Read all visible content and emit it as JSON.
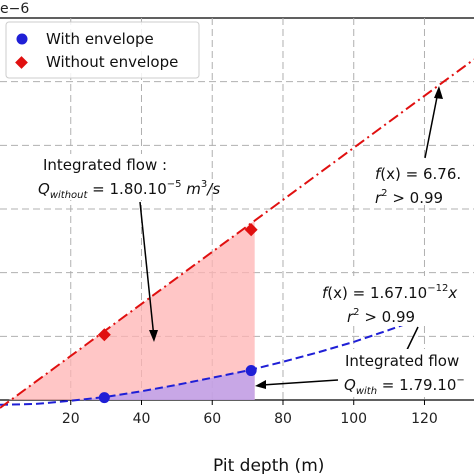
{
  "chart_data": {
    "type": "line",
    "xlabel": "Pit depth (m)",
    "x_ticks": [
      "20",
      "40",
      "60",
      "80",
      "100",
      "120"
    ],
    "xlim": [
      0,
      134
    ],
    "ylim": [
      0,
      2.4
    ],
    "y_offset_label": "e−6",
    "grid": true,
    "legend_position": "top-left",
    "series": [
      {
        "name": "With envelope",
        "color": "#1f1fd6",
        "marker": "circle",
        "points": [
          [
            29.5,
            0.015
          ],
          [
            71,
            0.185
          ]
        ],
        "fit_curve": [
          [
            0,
            -0.03
          ],
          [
            10,
            -0.025
          ],
          [
            20,
            -0.005
          ],
          [
            30,
            0.02
          ],
          [
            40,
            0.055
          ],
          [
            50,
            0.095
          ],
          [
            60,
            0.14
          ],
          [
            70,
            0.185
          ],
          [
            80,
            0.24
          ],
          [
            90,
            0.3
          ],
          [
            100,
            0.365
          ],
          [
            110,
            0.44
          ],
          [
            120,
            0.52
          ],
          [
            134,
            0.64
          ]
        ]
      },
      {
        "name": "Without envelope",
        "color": "#e01010",
        "marker": "diamond",
        "points": [
          [
            29.5,
            0.41
          ],
          [
            71,
            1.07
          ]
        ],
        "fit_curve": [
          [
            0,
            -0.05
          ],
          [
            134,
            2.14
          ]
        ]
      }
    ],
    "shaded_regions": [
      {
        "series": "Without envelope",
        "color": "#ffb3b3",
        "x_range": [
          0,
          72
        ]
      },
      {
        "series": "With envelope",
        "color": "#b59cf0",
        "x_range": [
          0,
          72
        ]
      }
    ],
    "annotations": {
      "flow_without_title": "Integrated flow :",
      "flow_without_value": "Q_without = 1.80.10^−5 m³/s",
      "fit_without_1": "f(x) = 6.76.",
      "fit_without_2": "r² > 0.99",
      "fit_with_1": "f(x) = 1.67.10^−12 x",
      "fit_with_2": "r² > 0.99",
      "flow_with_title": "Integrated flow",
      "flow_with_value": "Q_with = 1.79.10⁻"
    }
  },
  "text": {
    "offset": "e−6",
    "xlabel": "Pit depth (m)",
    "legend_with": "With envelope",
    "legend_without": "Without envelope",
    "flow_without_title": "Integrated flow :",
    "q_without_q": "Q",
    "q_without_sub": "without",
    "q_without_eq": " = 1.80.10",
    "q_without_exp": "−5",
    "q_without_unit": " m",
    "q_without_unit_exp": "3",
    "q_without_unit_tail": "/s",
    "fw_f": "f",
    "fw_rest": "(x) = 6.76.",
    "fw_r": "r",
    "fw_r_exp": "2",
    "fw_r_rest": " > 0.99",
    "fi_f": "f",
    "fi_rest": "(x) = 1.67.10",
    "fi_exp": "−12",
    "fi_x": "x",
    "fi_r": "r",
    "fi_r_exp": "2",
    "fi_r_rest": " > 0.99",
    "flow_with_title": "Integrated flow",
    "q_with_q": "Q",
    "q_with_sub": "with",
    "q_with_eq": " = 1.79.10",
    "q_with_exp": "−"
  }
}
